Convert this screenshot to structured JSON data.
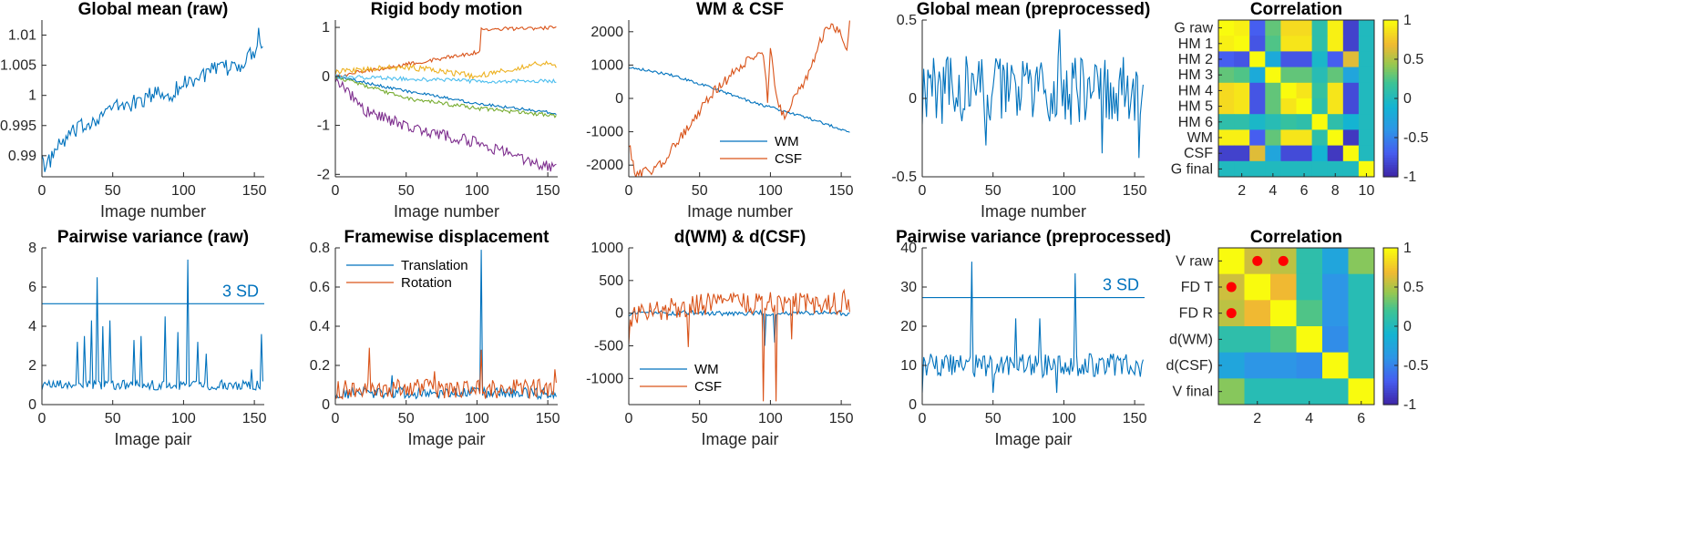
{
  "colors": {
    "blue": "#0072BD",
    "orange": "#D95319",
    "yellow": "#EDB120",
    "purple": "#7E2F8E",
    "green": "#77AC30",
    "cyan": "#4DBEEE",
    "marker": "#FF0000"
  },
  "colormap": "parula",
  "chart_data": [
    {
      "id": "gm_raw",
      "type": "line",
      "title": "Global mean (raw)",
      "xlabel": "Image number",
      "ylabel": "",
      "xlim": [
        0,
        157
      ],
      "ylim": [
        0.9865,
        1.0125
      ],
      "xticks": [
        0,
        50,
        100,
        150
      ],
      "yticks": [
        0.99,
        0.995,
        1,
        1.005,
        1.01
      ],
      "series": [
        {
          "color": "#0072BD",
          "knots": [
            [
              0,
              0.9915
            ],
            [
              2,
              0.987
            ],
            [
              4,
              0.9885
            ],
            [
              10,
              0.991
            ],
            [
              20,
              0.9935
            ],
            [
              30,
              0.995
            ],
            [
              40,
              0.9965
            ],
            [
              50,
              0.998
            ],
            [
              60,
              0.9985
            ],
            [
              70,
              0.999
            ],
            [
              80,
              1.0005
            ],
            [
              90,
              1.0
            ],
            [
              100,
              1.002
            ],
            [
              110,
              1.003
            ],
            [
              120,
              1.004
            ],
            [
              130,
              1.0045
            ],
            [
              140,
              1.005
            ],
            [
              150,
              1.0075
            ],
            [
              153,
              1.0105
            ],
            [
              156,
              1.0075
            ]
          ],
          "noise": 0.0014
        }
      ]
    },
    {
      "id": "rigid",
      "type": "line",
      "title": "Rigid body motion",
      "xlabel": "Image number",
      "ylabel": "",
      "xlim": [
        0,
        157
      ],
      "ylim": [
        -2.05,
        1.15
      ],
      "xticks": [
        0,
        50,
        100,
        150
      ],
      "yticks": [
        -2,
        -1,
        0,
        1
      ],
      "series": [
        {
          "color": "#0072BD",
          "knots": [
            [
              0,
              0
            ],
            [
              50,
              -0.3
            ],
            [
              100,
              -0.55
            ],
            [
              156,
              -0.75
            ]
          ],
          "noise": 0.03
        },
        {
          "color": "#D95319",
          "knots": [
            [
              0,
              0
            ],
            [
              40,
              0.2
            ],
            [
              102,
              0.5
            ],
            [
              103,
              0.95
            ],
            [
              156,
              1.0
            ]
          ],
          "noise": 0.04
        },
        {
          "color": "#EDB120",
          "knots": [
            [
              0,
              0.1
            ],
            [
              50,
              0.2
            ],
            [
              100,
              0.0
            ],
            [
              150,
              0.3
            ],
            [
              156,
              0.2
            ]
          ],
          "noise": 0.06
        },
        {
          "color": "#7E2F8E",
          "knots": [
            [
              0,
              0
            ],
            [
              20,
              -0.7
            ],
            [
              60,
              -1.1
            ],
            [
              100,
              -1.35
            ],
            [
              156,
              -1.9
            ]
          ],
          "noise": 0.12
        },
        {
          "color": "#77AC30",
          "knots": [
            [
              0,
              0
            ],
            [
              50,
              -0.45
            ],
            [
              100,
              -0.65
            ],
            [
              156,
              -0.8
            ]
          ],
          "noise": 0.04
        },
        {
          "color": "#4DBEEE",
          "knots": [
            [
              0,
              0
            ],
            [
              50,
              -0.05
            ],
            [
              100,
              -0.1
            ],
            [
              156,
              -0.1
            ]
          ],
          "noise": 0.04
        }
      ]
    },
    {
      "id": "wmcsf",
      "type": "line",
      "title": "WM & CSF",
      "xlabel": "Image number",
      "ylabel": "",
      "xlim": [
        0,
        157
      ],
      "ylim": [
        -2350,
        2350
      ],
      "xticks": [
        0,
        50,
        100,
        150
      ],
      "yticks": [
        -2000,
        -1000,
        0,
        1000,
        2000
      ],
      "legend": [
        "WM",
        "CSF"
      ],
      "legend_position": "lower-right",
      "series": [
        {
          "name": "WM",
          "color": "#0072BD",
          "knots": [
            [
              0,
              950
            ],
            [
              30,
              700
            ],
            [
              60,
              300
            ],
            [
              90,
              -150
            ],
            [
              120,
              -500
            ],
            [
              156,
              -1000
            ]
          ],
          "noise": 40
        },
        {
          "name": "CSF",
          "color": "#D95319",
          "knots": [
            [
              0,
              -1300
            ],
            [
              5,
              -2300
            ],
            [
              20,
              -2100
            ],
            [
              40,
              -1000
            ],
            [
              60,
              200
            ],
            [
              80,
              1000
            ],
            [
              95,
              1400
            ],
            [
              98,
              0
            ],
            [
              100,
              1500
            ],
            [
              105,
              -200
            ],
            [
              110,
              -500
            ],
            [
              125,
              600
            ],
            [
              140,
              2200
            ],
            [
              150,
              2000
            ],
            [
              154,
              1500
            ],
            [
              156,
              2200
            ]
          ],
          "noise": 150
        }
      ]
    },
    {
      "id": "gm_pre",
      "type": "line",
      "title": "Global mean (preprocessed)",
      "xlabel": "Image number",
      "ylabel": "",
      "xlim": [
        0,
        157
      ],
      "ylim": [
        -0.5,
        0.5
      ],
      "xticks": [
        0,
        50,
        100,
        150
      ],
      "yticks": [
        -0.5,
        0,
        0.5
      ],
      "series": [
        {
          "color": "#0072BD",
          "knots": [
            [
              0,
              0.05
            ],
            [
              156,
              0.05
            ]
          ],
          "noise": 0.22,
          "spikes": [
            [
              97,
              0.44
            ],
            [
              127,
              -0.35
            ],
            [
              153,
              -0.38
            ],
            [
              45,
              -0.3
            ]
          ]
        }
      ]
    },
    {
      "id": "pv_raw",
      "type": "line",
      "title": "Pairwise variance (raw)",
      "xlabel": "Image pair",
      "ylabel": "",
      "xlim": [
        0,
        157
      ],
      "ylim": [
        0,
        8
      ],
      "xticks": [
        0,
        50,
        100,
        150
      ],
      "yticks": [
        0,
        2,
        4,
        6,
        8
      ],
      "threshold": {
        "value": 5.15,
        "label": "3 SD"
      },
      "series": [
        {
          "color": "#0072BD",
          "knots": [
            [
              0,
              1.0
            ],
            [
              156,
              1.0
            ]
          ],
          "noise": 0.25,
          "spikes": [
            [
              25,
              3.2
            ],
            [
              30,
              3.5
            ],
            [
              35,
              4.3
            ],
            [
              39,
              6.5
            ],
            [
              43,
              4.0
            ],
            [
              48,
              4.3
            ],
            [
              65,
              3.3
            ],
            [
              70,
              3.5
            ],
            [
              87,
              4.5
            ],
            [
              96,
              3.7
            ],
            [
              103,
              7.4
            ],
            [
              110,
              3.2
            ],
            [
              116,
              2.6
            ],
            [
              148,
              1.8
            ],
            [
              155,
              3.6
            ]
          ]
        }
      ]
    },
    {
      "id": "fd",
      "type": "line",
      "title": "Framewise displacement",
      "xlabel": "Image pair",
      "ylabel": "",
      "xlim": [
        0,
        157
      ],
      "ylim": [
        0,
        0.8
      ],
      "xticks": [
        0,
        50,
        100,
        150
      ],
      "yticks": [
        0,
        0.2,
        0.4,
        0.6,
        0.8
      ],
      "legend": [
        "Translation",
        "Rotation"
      ],
      "legend_position": "upper-left",
      "series": [
        {
          "name": "Translation",
          "color": "#0072BD",
          "knots": [
            [
              0,
              0.06
            ],
            [
              156,
              0.06
            ]
          ],
          "noise": 0.03,
          "spikes": [
            [
              103,
              0.79
            ],
            [
              40,
              0.15
            ]
          ]
        },
        {
          "name": "Rotation",
          "color": "#D95319",
          "knots": [
            [
              0,
              0.08
            ],
            [
              156,
              0.08
            ]
          ],
          "noise": 0.05,
          "spikes": [
            [
              24,
              0.29
            ],
            [
              103,
              0.28
            ],
            [
              70,
              0.17
            ],
            [
              155,
              0.18
            ]
          ]
        }
      ]
    },
    {
      "id": "dwmcsf",
      "type": "line",
      "title": "d(WM) & d(CSF)",
      "xlabel": "Image pair",
      "ylabel": "",
      "xlim": [
        0,
        157
      ],
      "ylim": [
        -1400,
        1000
      ],
      "xticks": [
        0,
        50,
        100,
        150
      ],
      "yticks": [
        -1000,
        -500,
        0,
        500,
        1000
      ],
      "legend": [
        "WM",
        "CSF"
      ],
      "legend_position": "lower-left",
      "series": [
        {
          "name": "WM",
          "color": "#0072BD",
          "knots": [
            [
              0,
              0
            ],
            [
              156,
              0
            ]
          ],
          "noise": 40,
          "spikes": [
            [
              96,
              -500
            ],
            [
              103,
              -450
            ]
          ]
        },
        {
          "name": "CSF",
          "color": "#D95319",
          "knots": [
            [
              0,
              -300
            ],
            [
              3,
              0
            ],
            [
              40,
              100
            ],
            [
              60,
              150
            ],
            [
              156,
              150
            ]
          ],
          "noise": 170,
          "spikes": [
            [
              95,
              -1350
            ],
            [
              104,
              -1350
            ],
            [
              115,
              -400
            ],
            [
              42,
              -520
            ],
            [
              152,
              350
            ]
          ]
        }
      ]
    },
    {
      "id": "pv_pre",
      "type": "line",
      "title": "Pairwise variance (preprocessed)",
      "xlabel": "Image pair",
      "ylabel": "",
      "xlim": [
        0,
        157
      ],
      "ylim": [
        0,
        40
      ],
      "xticks": [
        0,
        50,
        100,
        150
      ],
      "yticks": [
        0,
        10,
        20,
        30,
        40
      ],
      "threshold": {
        "value": 27.3,
        "label": "3 SD"
      },
      "series": [
        {
          "color": "#0072BD",
          "knots": [
            [
              0,
              10
            ],
            [
              156,
              10
            ]
          ],
          "noise": 3.0,
          "spikes": [
            [
              0,
              3
            ],
            [
              35,
              36.5
            ],
            [
              108,
              33.5
            ],
            [
              66,
              22
            ],
            [
              83,
              22
            ],
            [
              95,
              3
            ],
            [
              50,
              3
            ]
          ]
        }
      ]
    },
    {
      "id": "corr_top",
      "type": "heatmap",
      "title": "Correlation",
      "row_labels": [
        "G raw",
        "HM 1",
        "HM 2",
        "HM 3",
        "HM 4",
        "HM 5",
        "HM 6",
        "WM",
        "CSF",
        "G final"
      ],
      "xticks": [
        2,
        4,
        6,
        8,
        10
      ],
      "clim": [
        -1,
        1
      ],
      "colorbar_ticks": [
        1,
        0.5,
        0,
        -0.5,
        -1
      ],
      "values": [
        [
          1,
          0.95,
          -0.7,
          0.3,
          0.85,
          0.85,
          0.1,
          0.95,
          -0.85,
          0
        ],
        [
          0.95,
          1,
          -0.75,
          0.25,
          0.9,
          0.9,
          0.1,
          0.95,
          -0.85,
          0
        ],
        [
          -0.7,
          -0.75,
          1,
          -0.2,
          -0.75,
          -0.75,
          -0.05,
          -0.7,
          0.65,
          0
        ],
        [
          0.3,
          0.25,
          -0.2,
          1,
          0.3,
          0.3,
          0.05,
          0.3,
          -0.25,
          0
        ],
        [
          0.85,
          0.9,
          -0.75,
          0.3,
          1,
          0.9,
          0.15,
          0.9,
          -0.8,
          0
        ],
        [
          0.85,
          0.9,
          -0.75,
          0.3,
          0.9,
          1,
          0.1,
          0.9,
          -0.8,
          0
        ],
        [
          0.1,
          0.1,
          -0.05,
          0.05,
          0.15,
          0.1,
          1,
          0.1,
          -0.1,
          0
        ],
        [
          0.95,
          0.95,
          -0.7,
          0.3,
          0.9,
          0.9,
          0.1,
          1,
          -0.9,
          0
        ],
        [
          -0.85,
          -0.85,
          0.65,
          -0.25,
          -0.8,
          -0.8,
          -0.1,
          -0.9,
          1,
          0
        ],
        [
          0,
          0,
          0,
          0,
          0,
          0,
          0,
          0,
          0,
          1
        ]
      ]
    },
    {
      "id": "corr_bottom",
      "type": "heatmap",
      "title": "Correlation",
      "row_labels": [
        "V raw",
        "FD T",
        "FD R",
        "d(WM)",
        "d(CSF)",
        "V final"
      ],
      "xticks": [
        2,
        4,
        6
      ],
      "clim": [
        -1,
        1
      ],
      "colorbar_ticks": [
        1,
        0.5,
        0,
        -0.5,
        -1
      ],
      "values": [
        [
          1,
          0.6,
          0.55,
          0.1,
          -0.25,
          0.4
        ],
        [
          0.6,
          1,
          0.7,
          0.1,
          -0.4,
          0.05
        ],
        [
          0.55,
          0.7,
          1,
          0.25,
          -0.4,
          0.05
        ],
        [
          0.1,
          0.1,
          0.25,
          1,
          -0.45,
          0.05
        ],
        [
          -0.25,
          -0.4,
          -0.4,
          -0.45,
          1,
          0.05
        ],
        [
          0.4,
          0.05,
          0.05,
          0.05,
          0.05,
          1
        ]
      ],
      "markers": [
        [
          1,
          2
        ],
        [
          1,
          3
        ],
        [
          2,
          1
        ],
        [
          3,
          1
        ]
      ]
    }
  ]
}
